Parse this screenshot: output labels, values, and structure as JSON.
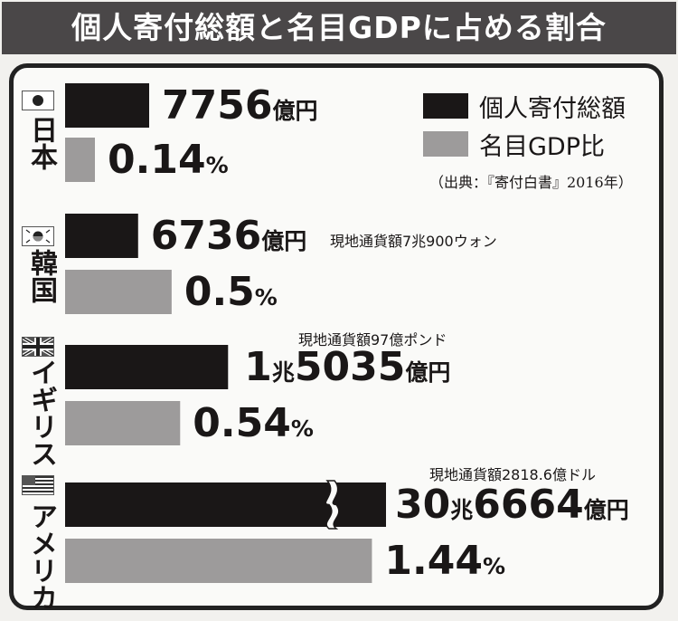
{
  "title": "個人寄付総額と名目GDPに占める割合",
  "legend": [
    {
      "label": "個人寄付総額",
      "color": "#1a1717"
    },
    {
      "label": "名目GDP比",
      "color": "#9d9b9b"
    }
  ],
  "source": "（出典：『寄付白書』2016年）",
  "chart_data": {
    "type": "bar",
    "orientation": "horizontal",
    "categories": [
      "日本",
      "韓国",
      "イギリス",
      "アメリカ"
    ],
    "series": [
      {
        "name": "個人寄付総額",
        "unit": "億円",
        "values": [
          7756,
          6736,
          15035,
          306664
        ],
        "axis_break_on": "アメリカ"
      },
      {
        "name": "名目GDP比",
        "unit": "%",
        "values": [
          0.14,
          0.5,
          0.54,
          1.44
        ]
      }
    ],
    "data_labels": {
      "amount": [
        {
          "parts": [
            {
              "t": "7756",
              "big": true
            },
            {
              "t": "億円",
              "big": false
            }
          ]
        },
        {
          "parts": [
            {
              "t": "6736",
              "big": true
            },
            {
              "t": "億円",
              "big": false
            }
          ]
        },
        {
          "parts": [
            {
              "t": "1",
              "big": true
            },
            {
              "t": "兆",
              "big": false
            },
            {
              "t": "5035",
              "big": true
            },
            {
              "t": "億円",
              "big": false
            }
          ]
        },
        {
          "parts": [
            {
              "t": "30",
              "big": true
            },
            {
              "t": "兆",
              "big": false
            },
            {
              "t": "6664",
              "big": true
            },
            {
              "t": "億円",
              "big": false
            }
          ]
        }
      ],
      "ratio": [
        {
          "parts": [
            {
              "t": "0.14",
              "big": true
            },
            {
              "t": "%",
              "big": false
            }
          ]
        },
        {
          "parts": [
            {
              "t": "0.5",
              "big": true
            },
            {
              "t": "%",
              "big": false
            }
          ]
        },
        {
          "parts": [
            {
              "t": "0.54",
              "big": true
            },
            {
              "t": "%",
              "big": false
            }
          ]
        },
        {
          "parts": [
            {
              "t": "1.44",
              "big": true
            },
            {
              "t": "%",
              "big": false
            }
          ]
        }
      ]
    },
    "local_currency_notes": [
      "",
      "現地通貨額7兆900ウォン",
      "現地通貨額97億ポンド",
      "現地通貨額2818.6億ドル"
    ],
    "flags": [
      "japan-flag-icon",
      "korea-flag-icon",
      "uk-flag-icon",
      "usa-flag-icon"
    ]
  }
}
